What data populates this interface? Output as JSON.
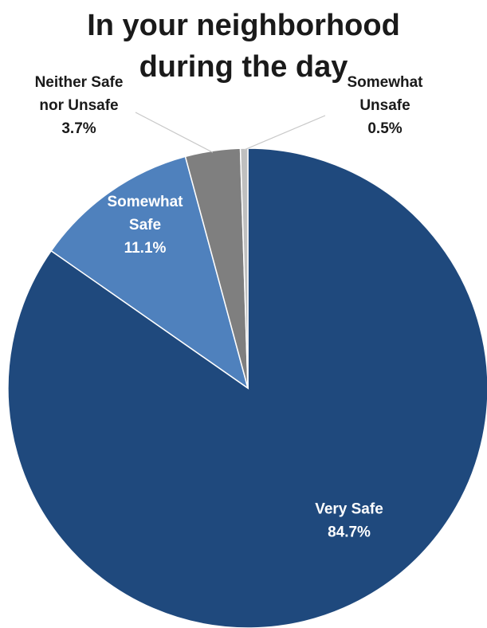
{
  "chart_data": {
    "type": "pie",
    "title_lines": [
      "In your neighborhood",
      "during the day"
    ],
    "start_angle_deg": 0,
    "direction": "clockwise",
    "slices": [
      {
        "label_lines": [
          "Very Safe"
        ],
        "value": 84.7,
        "value_text": "84.7%",
        "color": "#1f497d",
        "label_color": "#ffffff",
        "label_placement": "inside"
      },
      {
        "label_lines": [
          "Somewhat",
          "Safe"
        ],
        "value": 11.1,
        "value_text": "11.1%",
        "color": "#4f81bd",
        "label_color": "#ffffff",
        "label_placement": "inside"
      },
      {
        "label_lines": [
          "Neither Safe",
          "nor Unsafe"
        ],
        "value": 3.7,
        "value_text": "3.7%",
        "color": "#7f7f7f",
        "label_color": "#1a1a1a",
        "label_placement": "outside-left"
      },
      {
        "label_lines": [
          "Somewhat",
          "Unsafe"
        ],
        "value": 0.5,
        "value_text": "0.5%",
        "color": "#bfbfbf",
        "label_color": "#1a1a1a",
        "label_placement": "outside-right"
      }
    ],
    "legend": "none"
  }
}
